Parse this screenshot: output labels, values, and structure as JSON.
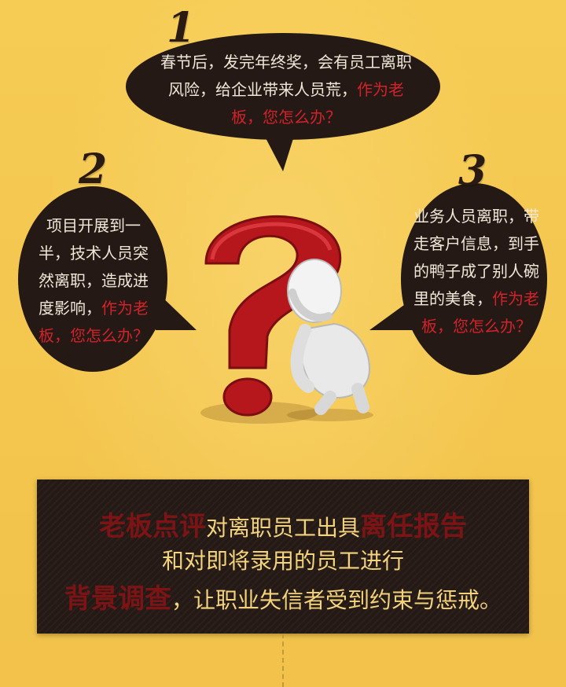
{
  "bubbles": [
    {
      "num": "1",
      "text_plain": "春节后，发完年终奖，会有员工离职风险，给企业带来人员荒，",
      "text_red": "作为老板，您怎么办？"
    },
    {
      "num": "2",
      "text_plain": "项目开展到一半，技术人员突然离职，造成进度影响，",
      "text_red": "作为老板，您怎么办？"
    },
    {
      "num": "3",
      "text_plain": "业务人员离职，带走客户信息，到手的鸭子成了别人碗里的美食，",
      "text_red": "作为老板，您怎么办？"
    }
  ],
  "panel": {
    "line1_hl": "老板点评",
    "line1_a": "对离职员工出具",
    "line1_hl2": "离任报告",
    "line2": "和对即将录用的员工进行",
    "line3_hl": "背景调查",
    "line3_a": "，让职业失信者受到约束与惩戒。"
  },
  "colors": {
    "background": "#f5c94f",
    "bubble": "#241915",
    "text_light": "#f2e6d8",
    "text_red": "#d2222a",
    "panel_text": "#f3d37c",
    "panel_highlight": "#7c1416"
  }
}
